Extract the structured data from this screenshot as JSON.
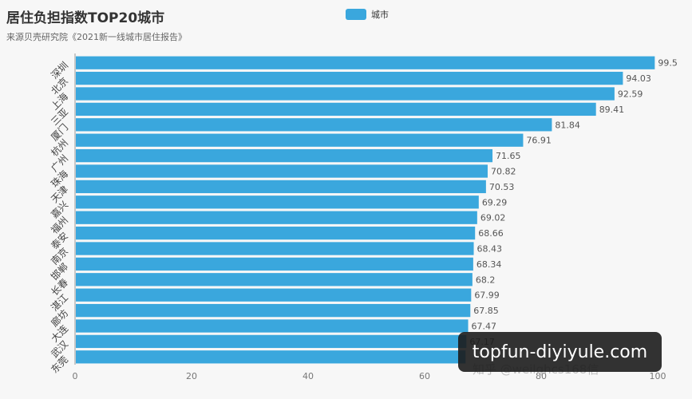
{
  "chart_data": {
    "type": "bar",
    "orientation": "horizontal",
    "title": "居住负担指数TOP20城市",
    "subtitle": "来源贝壳研究院《2021新一线城市居住报告》",
    "legend": [
      "城市"
    ],
    "legend_position": "top-center",
    "categories": [
      "深圳",
      "北京",
      "上海",
      "三亚",
      "厦门",
      "杭州",
      "广州",
      "珠海",
      "天津",
      "嘉兴",
      "福州",
      "泰安",
      "南京",
      "邯郸",
      "长春",
      "湛江",
      "廊坊",
      "大连",
      "武汉",
      "东莞"
    ],
    "values": [
      99.5,
      94.03,
      92.59,
      89.41,
      81.84,
      76.91,
      71.65,
      70.82,
      70.53,
      69.29,
      69.02,
      68.66,
      68.43,
      68.34,
      68.2,
      67.99,
      67.85,
      67.47,
      67.17,
      67.03
    ],
    "value_labels": [
      "99.5",
      "94.03",
      "92.59",
      "89.41",
      "81.84",
      "76.91",
      "71.65",
      "70.82",
      "70.53",
      "69.29",
      "69.02",
      "68.66",
      "68.43",
      "68.34",
      "68.2",
      "67.99",
      "67.85",
      "67.47",
      "67.17",
      ""
    ],
    "xlim": [
      0,
      100
    ],
    "xticks": [
      "0",
      "20",
      "40",
      "60",
      "80",
      "100"
    ],
    "grid": false,
    "color": "#3aa7dd"
  },
  "overlay": {
    "watermark": "topfun-diyiyule.com",
    "source_mark": "知乎 @weilghcs168信"
  }
}
